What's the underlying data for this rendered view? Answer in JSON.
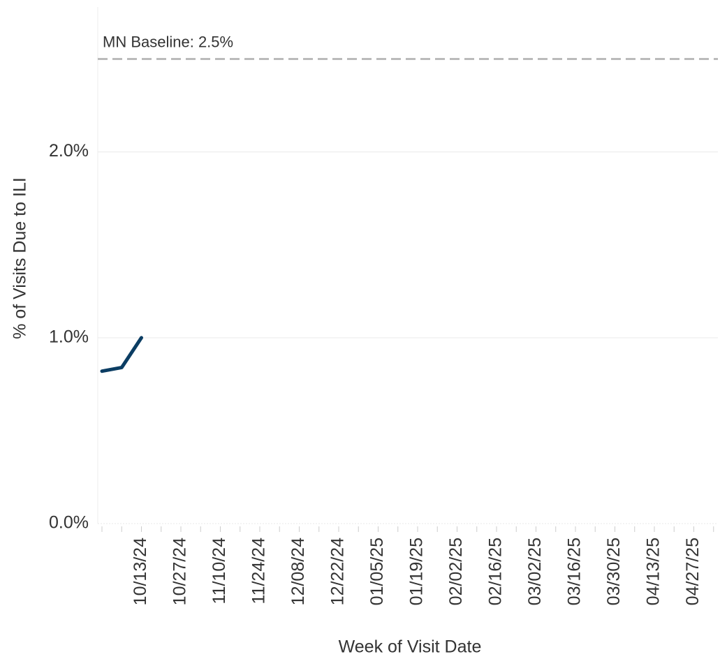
{
  "chart_data": {
    "type": "line",
    "xlabel": "Week of Visit Date",
    "ylabel": "% of Visits Due to ILI",
    "categories": [
      null,
      null,
      "10/13/24",
      null,
      "10/27/24",
      null,
      "11/10/24",
      null,
      "11/24/24",
      null,
      "12/08/24",
      null,
      "12/22/24",
      null,
      "01/05/25",
      null,
      "01/19/25",
      null,
      "02/02/25",
      null,
      "02/16/25",
      null,
      "03/02/25",
      null,
      "03/16/25",
      null,
      "03/30/25",
      null,
      "04/13/25",
      null,
      "04/27/25",
      null
    ],
    "series": [
      {
        "color": "#0b3d63",
        "values": [
          0.82,
          0.84,
          1.0,
          null,
          null,
          null,
          null,
          null,
          null,
          null,
          null,
          null,
          null,
          null,
          null,
          null,
          null,
          null,
          null,
          null,
          null,
          null,
          null,
          null,
          null,
          null,
          null,
          null,
          null,
          null,
          null,
          null
        ]
      }
    ],
    "ylim": [
      0,
      2.78
    ],
    "yticks": [
      {
        "value": 0,
        "label": "0.0%"
      },
      {
        "value": 1,
        "label": "1.0%"
      },
      {
        "value": 2,
        "label": "2.0%"
      }
    ],
    "grid": true,
    "baseline": {
      "label": "MN Baseline: 2.5%",
      "value": 2.5,
      "color": "#bbbbbb"
    }
  }
}
